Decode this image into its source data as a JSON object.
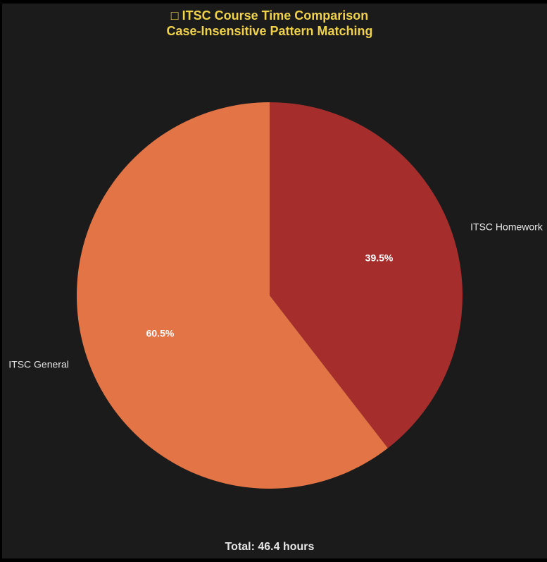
{
  "chart_data": {
    "type": "pie",
    "title": "□ ITSC Course Time Comparison",
    "subtitle": "Case-Insensitive Pattern Matching",
    "slices": [
      {
        "label": "ITSC Homework",
        "value": 39.5,
        "pct_label": "39.5%",
        "color": "#a52e2c"
      },
      {
        "label": "ITSC General",
        "value": 60.5,
        "pct_label": "60.5%",
        "color": "#e27445"
      }
    ],
    "start_angle": "12 o'clock, clockwise",
    "footer": "Total: 46.4 hours"
  },
  "colors": {
    "background": "#1b1b1b",
    "title": "#f0d24a",
    "label": "#e6e6e6",
    "pct": "#ffffff"
  }
}
